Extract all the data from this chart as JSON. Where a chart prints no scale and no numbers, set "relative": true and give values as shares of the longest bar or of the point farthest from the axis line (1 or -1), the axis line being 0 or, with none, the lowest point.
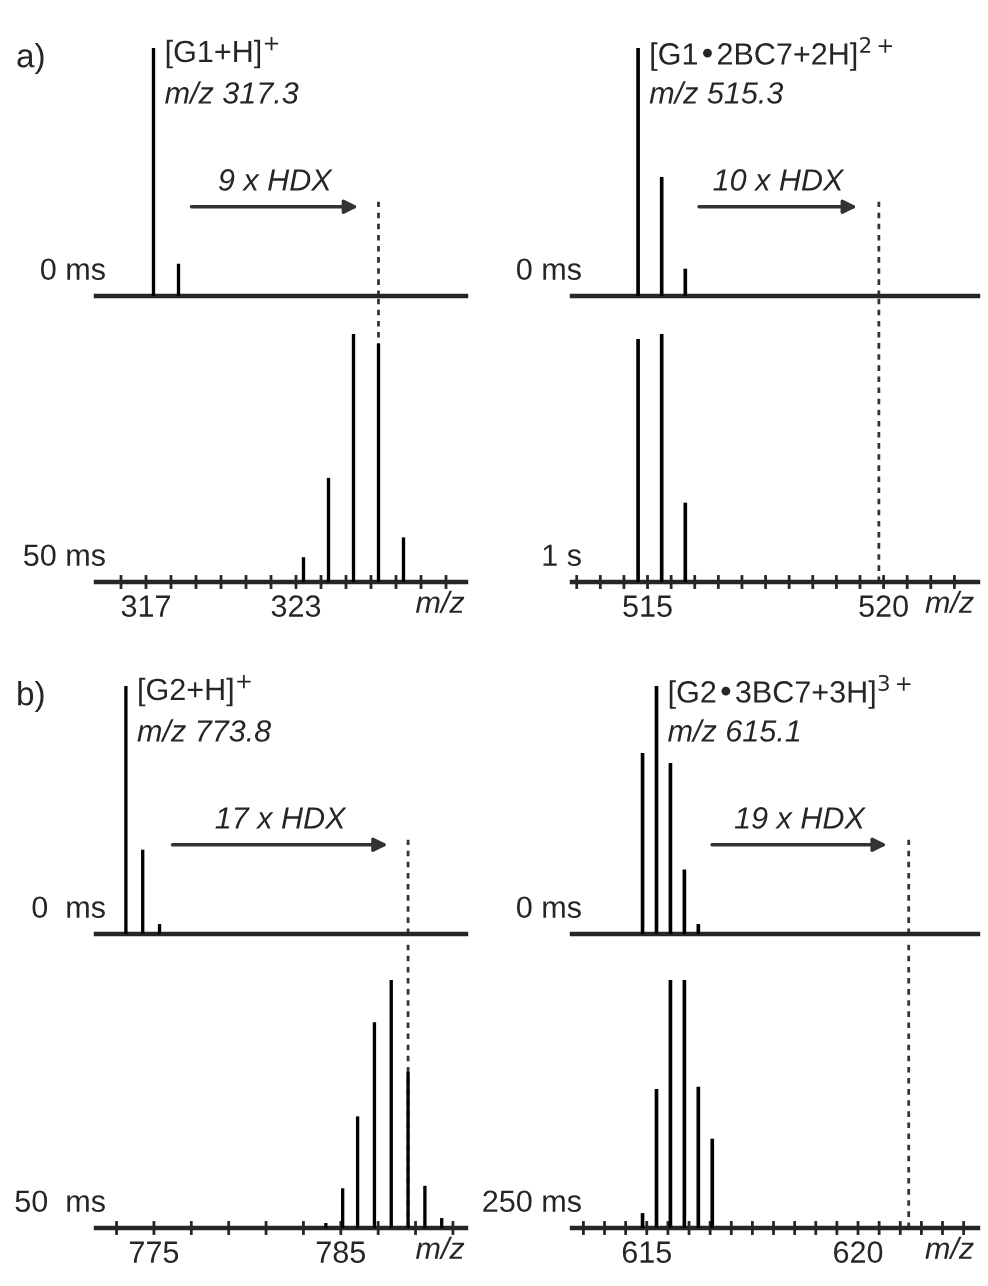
{
  "chart_data": [
    {
      "type": "bar",
      "title": "a)",
      "ylabel": "0 ms",
      "relative": true,
      "color": "#000000",
      "x": [
        317.3,
        318.3
      ],
      "values": [
        1,
        0.13
      ],
      "xlim": [
        315,
        329.8
      ],
      "tick_labels": false,
      "annotations": [
        {
          "text": "[G1+H]$^{+}$",
          "x": 317.3,
          "y": 1
        },
        "m/z 317.3",
        "9 x HDX"
      ],
      "ref_lines": [
        {
          "axis": "x",
          "value": 326.3,
          "line_style": "dotted"
        }
      ]
    },
    {
      "type": "bar",
      "ylabel": "0 ms",
      "relative": true,
      "color": "#000000",
      "x": [
        514.8,
        515.3,
        515.8
      ],
      "values": [
        1,
        0.48,
        0.11
      ],
      "xlim": [
        513.4,
        522
      ],
      "tick_labels": false,
      "annotations": [
        {
          "text": "[G1•2BC7+2H]$^{2+}$",
          "x": 514.8,
          "y": 1
        },
        "m/z 515.3",
        "10 x HDX"
      ],
      "ref_lines": [
        {
          "axis": "x",
          "value": 519.9,
          "line_style": "dotted"
        }
      ]
    },
    {
      "type": "bar",
      "ylabel": "50 ms",
      "xlabel": "m/z",
      "relative": true,
      "color": "#000000",
      "x": [
        323.3,
        324.3,
        325.3,
        326.3,
        327.3
      ],
      "values": [
        0.1,
        0.42,
        1,
        0.96,
        0.18
      ],
      "xlim": [
        315,
        329.8
      ],
      "xticks": [
        {
          "value": 316,
          "label": null
        },
        317,
        {
          "value": 318,
          "label": null
        },
        {
          "value": 319,
          "label": null
        },
        {
          "value": 320,
          "label": null
        },
        {
          "value": 321,
          "label": null
        },
        {
          "value": 322,
          "label": null
        },
        323,
        {
          "value": 324,
          "label": null
        },
        {
          "value": 325,
          "label": null
        },
        {
          "value": 326,
          "label": null
        },
        {
          "value": 327,
          "label": null
        },
        {
          "value": 328,
          "label": null
        },
        {
          "value": 329,
          "label": null
        }
      ],
      "ref_lines": [
        {
          "axis": "x",
          "value": 326.3,
          "line_style": "dotted"
        }
      ]
    },
    {
      "type": "bar",
      "ylabel": "1 s",
      "xlabel": "m/z",
      "relative": true,
      "color": "#000000",
      "x": [
        514.8,
        515.3,
        515.8
      ],
      "values": [
        0.98,
        1,
        0.32
      ],
      "xlim": [
        513.4,
        522
      ],
      "xticks": [
        {
          "value": 513.5,
          "label": null
        },
        {
          "value": 514,
          "label": null
        },
        {
          "value": 514.5,
          "label": null
        },
        515,
        {
          "value": 515.5,
          "label": null
        },
        {
          "value": 516,
          "label": null
        },
        {
          "value": 516.5,
          "label": null
        },
        {
          "value": 517,
          "label": null
        },
        {
          "value": 517.5,
          "label": null
        },
        {
          "value": 518,
          "label": null
        },
        {
          "value": 518.5,
          "label": null
        },
        {
          "value": 519,
          "label": null
        },
        {
          "value": 519.5,
          "label": null
        },
        520,
        {
          "value": 520.5,
          "label": null
        },
        {
          "value": 521,
          "label": null
        },
        {
          "value": 521.5,
          "label": null
        }
      ],
      "ref_lines": [
        {
          "axis": "x",
          "value": 519.9,
          "line_style": "dotted"
        }
      ]
    },
    {
      "type": "bar",
      "title": "b)",
      "ylabel": "0  ms",
      "relative": true,
      "color": "#000000",
      "x": [
        773.5,
        774.4,
        775.3
      ],
      "values": [
        1,
        0.34,
        0.04
      ],
      "xlim": [
        771.9,
        791.7
      ],
      "tick_labels": false,
      "annotations": [
        {
          "text": "[G2+H]$^{+}$",
          "x": 773.5,
          "y": 1
        },
        "m/z 773.8",
        "17 x HDX"
      ],
      "ref_lines": [
        {
          "axis": "x",
          "value": 788.6,
          "line_style": "dotted"
        }
      ]
    },
    {
      "type": "bar",
      "ylabel": "0 ms",
      "relative": true,
      "color": "#000000",
      "x": [
        614.9,
        615.23,
        615.56,
        615.89,
        616.22
      ],
      "values": [
        0.73,
        1,
        0.69,
        0.26,
        0.04
      ],
      "xlim": [
        613.23,
        622.84
      ],
      "tick_labels": false,
      "annotations": [
        {
          "text": "[G2•3BC7+3H]$^{3+}$",
          "x": 615.23,
          "y": 1
        },
        "m/z 615.1",
        "19 x HDX"
      ],
      "ref_lines": [
        {
          "axis": "x",
          "value": 621.2,
          "line_style": "dotted"
        }
      ]
    },
    {
      "type": "bar",
      "ylabel": "50  ms",
      "xlabel": "m/z",
      "relative": true,
      "color": "#000000",
      "x": [
        784.2,
        785.1,
        785.9,
        786.8,
        787.7,
        788.6,
        789.5,
        790.4
      ],
      "values": [
        0.02,
        0.16,
        0.45,
        0.83,
        1,
        0.63,
        0.17,
        0.04
      ],
      "xlim": [
        771.9,
        791.7
      ],
      "xticks": [
        {
          "value": 773,
          "label": null
        },
        775,
        {
          "value": 777,
          "label": null
        },
        {
          "value": 779,
          "label": null
        },
        {
          "value": 781,
          "label": null
        },
        {
          "value": 783,
          "label": null
        },
        785,
        {
          "value": 787,
          "label": null
        },
        {
          "value": 789,
          "label": null
        },
        {
          "value": 791,
          "label": null
        }
      ],
      "ref_lines": [
        {
          "axis": "x",
          "value": 788.6,
          "line_style": "dotted"
        }
      ]
    },
    {
      "type": "bar",
      "ylabel": "250 ms",
      "xlabel": "m/z",
      "relative": true,
      "color": "#000000",
      "x": [
        614.9,
        615.23,
        615.56,
        615.89,
        616.22,
        616.55
      ],
      "values": [
        0.06,
        0.56,
        1,
        1,
        0.57,
        0.36
      ],
      "xlim": [
        613.23,
        622.84
      ],
      "xticks": [
        {
          "value": 613.5,
          "label": null
        },
        {
          "value": 614,
          "label": null
        },
        {
          "value": 614.5,
          "label": null
        },
        615,
        {
          "value": 615.5,
          "label": null
        },
        {
          "value": 616,
          "label": null
        },
        {
          "value": 616.5,
          "label": null
        },
        {
          "value": 617,
          "label": null
        },
        {
          "value": 617.5,
          "label": null
        },
        {
          "value": 618,
          "label": null
        },
        {
          "value": 618.5,
          "label": null
        },
        {
          "value": 619,
          "label": null
        },
        {
          "value": 619.5,
          "label": null
        },
        620,
        {
          "value": 620.5,
          "label": null
        },
        {
          "value": 621,
          "label": null
        },
        {
          "value": 621.5,
          "label": null
        },
        {
          "value": 622,
          "label": null
        },
        {
          "value": 622.5,
          "label": null
        }
      ],
      "ref_lines": [
        {
          "axis": "x",
          "value": 621.2,
          "line_style": "dotted"
        }
      ]
    }
  ]
}
